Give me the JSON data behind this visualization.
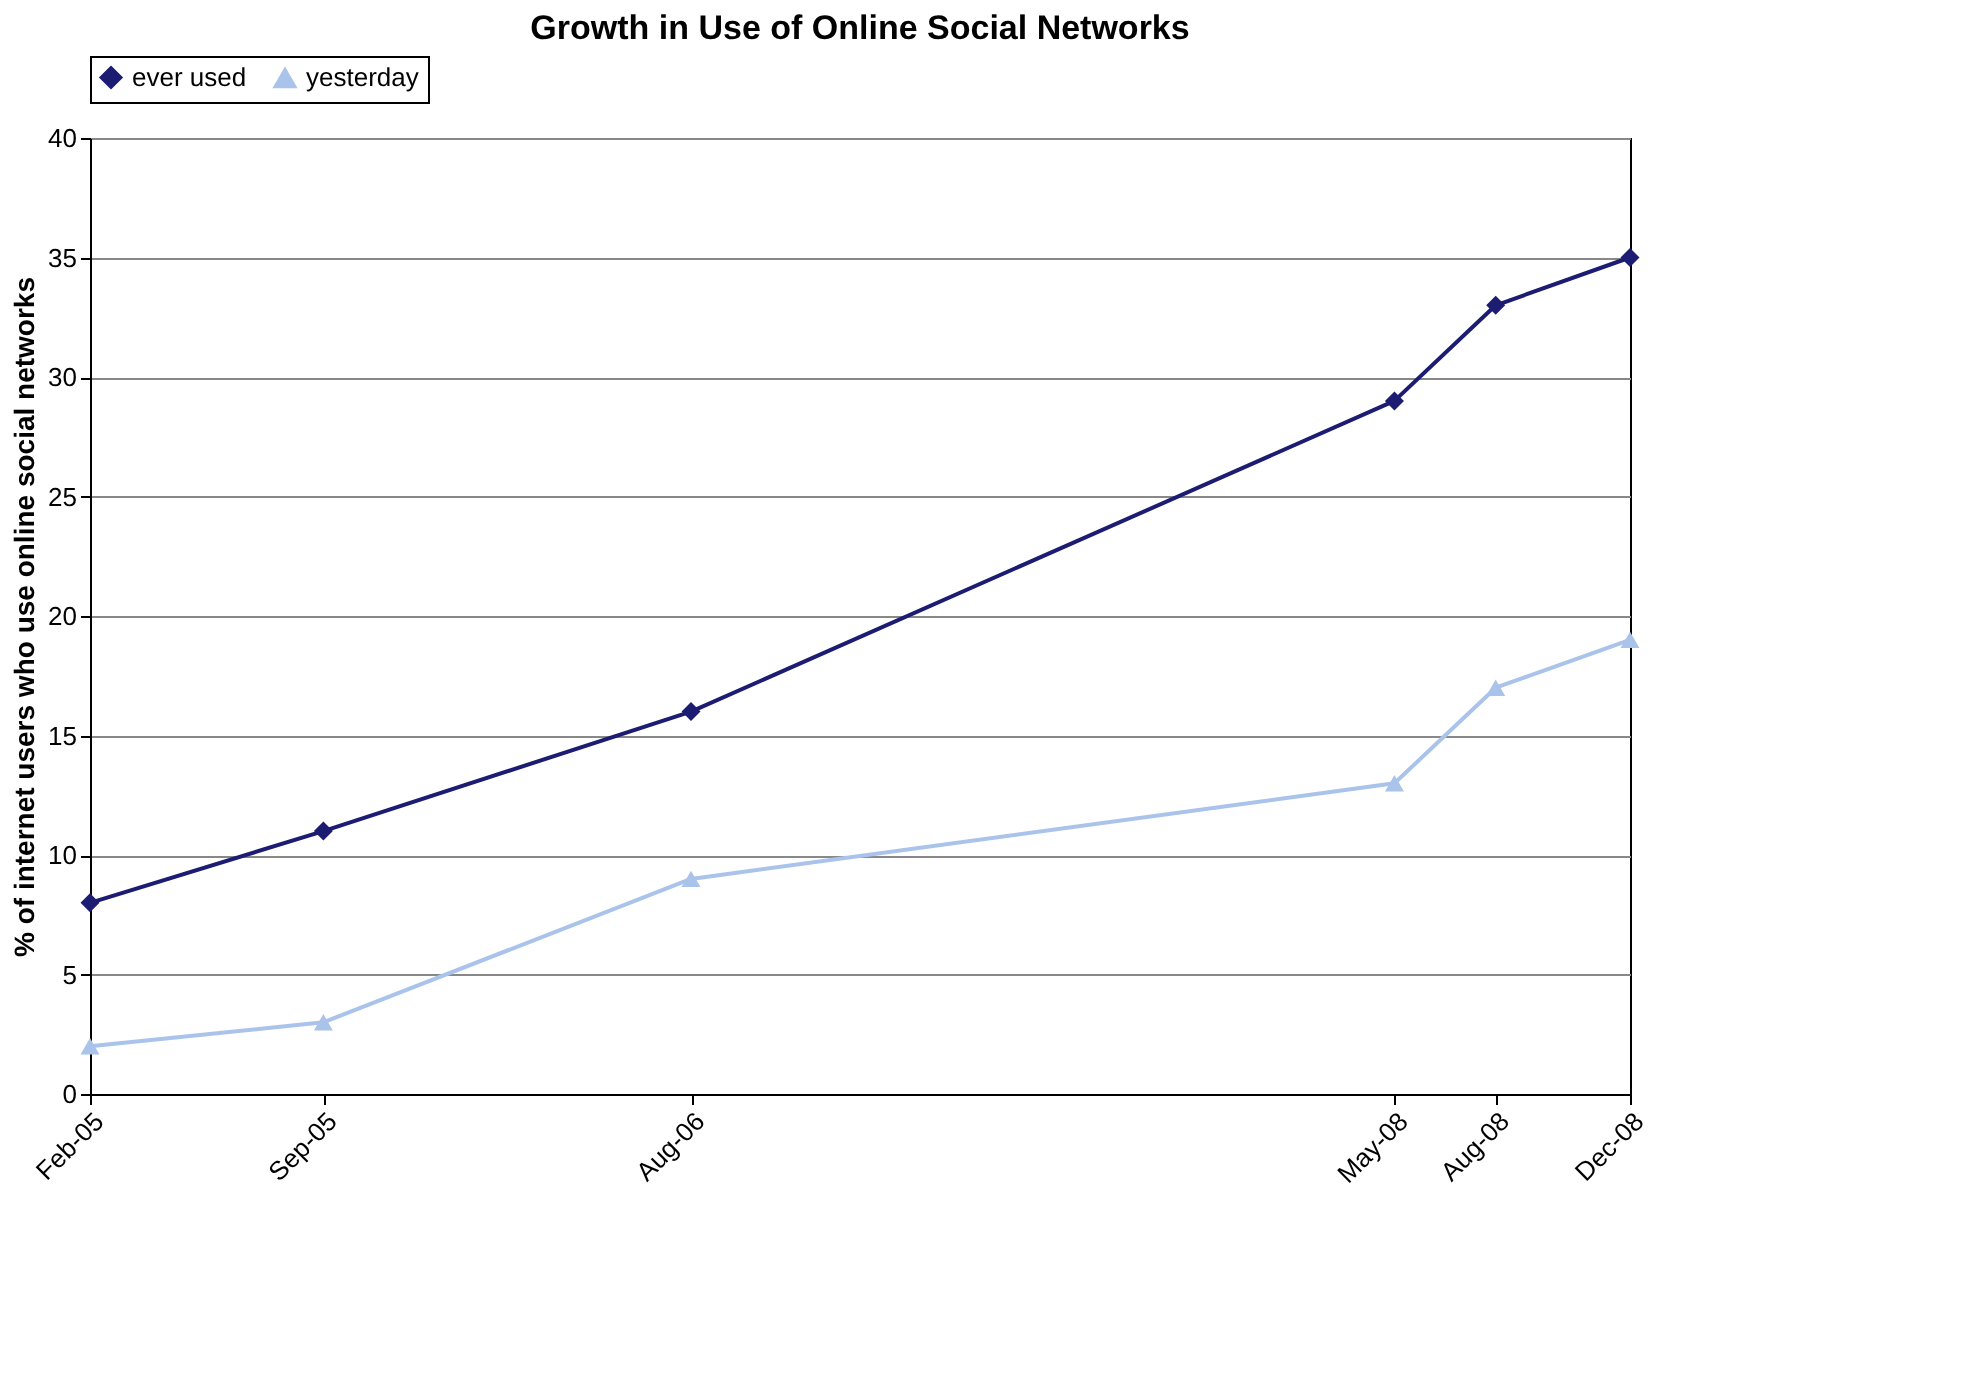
{
  "chart_data": {
    "type": "line",
    "title": "Growth in Use of Online Social Networks",
    "ylabel": "% of internet users who use online social networks",
    "x": [
      "2005-02",
      "2005-09",
      "2006-08",
      "2008-05",
      "2008-08",
      "2008-12"
    ],
    "series": [
      {
        "name": "ever used",
        "color": "#1c1c72",
        "marker": "diamond",
        "values": [
          8,
          11,
          16,
          29,
          33,
          35
        ]
      },
      {
        "name": "yesterday",
        "color": "#a9c3ea",
        "marker": "triangle",
        "values": [
          2,
          3,
          9,
          13,
          17,
          19
        ]
      }
    ],
    "xlim": [
      "2005-02",
      "2008-12"
    ],
    "xticks": [
      {
        "value": "2005-02",
        "label": "Feb-05"
      },
      {
        "value": "2005-09",
        "label": "Sep-05"
      },
      {
        "value": "2006-08",
        "label": "Aug-06"
      },
      {
        "value": "2008-05",
        "label": "May-08"
      },
      {
        "value": "2008-08",
        "label": "Aug-08"
      },
      {
        "value": "2008-12",
        "label": "Dec-08"
      }
    ],
    "ylim": [
      0,
      40
    ],
    "yticks": [
      0,
      5,
      10,
      15,
      20,
      25,
      30,
      35,
      40
    ],
    "grid": "y",
    "legend": "top",
    "line_style": "solid"
  }
}
